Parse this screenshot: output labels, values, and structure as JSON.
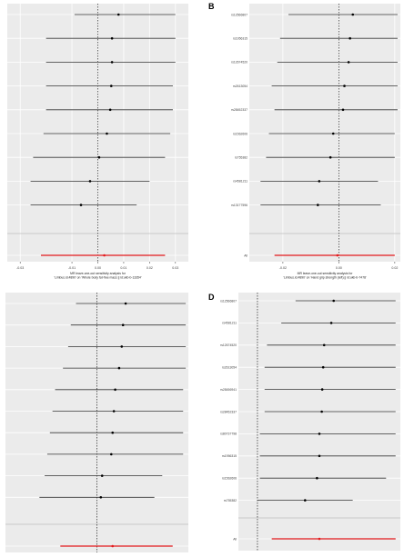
{
  "chart_data": [
    {
      "type": "scatter",
      "panel_label": "",
      "xlabel": [
        "MR leave-one-out sensitivity analysis for",
        "'Limbus.id.4890' on 'Whole body fat-free mass || id:ukb-b-13354'"
      ],
      "xticks": [
        "-0.03",
        "-0.01",
        "0.00",
        "0.01",
        "0.02",
        "0.03"
      ],
      "xlim": [
        -0.035,
        0.035
      ],
      "snps": [
        "",
        "",
        "",
        "",
        "",
        "",
        "",
        "",
        ""
      ],
      "points": [
        {
          "est": 0.008,
          "lo": -0.009,
          "hi": 0.03
        },
        {
          "est": 0.0055,
          "lo": -0.02,
          "hi": 0.03
        },
        {
          "est": 0.0055,
          "lo": -0.02,
          "hi": 0.03
        },
        {
          "est": 0.0052,
          "lo": -0.02,
          "hi": 0.029
        },
        {
          "est": 0.0048,
          "lo": -0.02,
          "hi": 0.029
        },
        {
          "est": 0.0035,
          "lo": -0.021,
          "hi": 0.028
        },
        {
          "est": 0.0005,
          "lo": -0.025,
          "hi": 0.026
        },
        {
          "est": -0.003,
          "lo": -0.026,
          "hi": 0.02
        },
        {
          "est": -0.0065,
          "lo": -0.026,
          "hi": 0.015
        }
      ],
      "summary": {
        "label": "",
        "est": 0.0025,
        "lo": -0.022,
        "hi": 0.026
      }
    },
    {
      "type": "scatter",
      "panel_label": "B",
      "xlabel": [
        "MR leave-one-out sensitivity analysis for",
        "'Limbus.id.4890' on 'Hand grip strength (left) || id:ukb-b-7478'"
      ],
      "xticks": [
        "-0.02",
        "0.00",
        "0.02"
      ],
      "xlim": [
        -0.032,
        0.022
      ],
      "snps": [
        "rs12566807",
        "rs1956315",
        "rs12674520",
        "rs2613054",
        "rs28452337",
        "rs1562606",
        "rs755382",
        "rs4581211",
        "rs13177596"
      ],
      "points": [
        {
          "est": 0.005,
          "lo": -0.018,
          "hi": 0.021
        },
        {
          "est": 0.004,
          "lo": -0.021,
          "hi": 0.021
        },
        {
          "est": 0.0035,
          "lo": -0.022,
          "hi": 0.021
        },
        {
          "est": 0.002,
          "lo": -0.024,
          "hi": 0.021
        },
        {
          "est": 0.0015,
          "lo": -0.023,
          "hi": 0.021
        },
        {
          "est": -0.002,
          "lo": -0.025,
          "hi": 0.02
        },
        {
          "est": -0.003,
          "lo": -0.026,
          "hi": 0.02
        },
        {
          "est": -0.007,
          "lo": -0.028,
          "hi": 0.014
        },
        {
          "est": -0.0075,
          "lo": -0.028,
          "hi": 0.015
        }
      ],
      "summary": {
        "label": "All",
        "est": -0.0005,
        "lo": -0.023,
        "hi": 0.02
      }
    },
    {
      "type": "scatter",
      "panel_label": "",
      "xlabel": [],
      "xticks": [],
      "xlim": [
        -0.035,
        0.035
      ],
      "snps": [
        "",
        "",
        "",
        "",
        "",
        "",
        "",
        "",
        "",
        ""
      ],
      "points": [
        {
          "est": 0.011,
          "lo": -0.008,
          "hi": 0.034
        },
        {
          "est": 0.01,
          "lo": -0.01,
          "hi": 0.034
        },
        {
          "est": 0.0095,
          "lo": -0.011,
          "hi": 0.034
        },
        {
          "est": 0.0085,
          "lo": -0.013,
          "hi": 0.034
        },
        {
          "est": 0.007,
          "lo": -0.016,
          "hi": 0.033
        },
        {
          "est": 0.0065,
          "lo": -0.017,
          "hi": 0.033
        },
        {
          "est": 0.006,
          "lo": -0.018,
          "hi": 0.033
        },
        {
          "est": 0.0055,
          "lo": -0.019,
          "hi": 0.033
        },
        {
          "est": 0.002,
          "lo": -0.02,
          "hi": 0.025
        },
        {
          "est": 0.0015,
          "lo": -0.022,
          "hi": 0.022
        }
      ],
      "summary": {
        "label": "",
        "est": 0.006,
        "lo": -0.014,
        "hi": 0.029
      }
    },
    {
      "type": "scatter",
      "panel_label": "D",
      "xlabel": [],
      "xticks": [],
      "xlim": [
        -0.004,
        0.03
      ],
      "snps": [
        "rs12566807",
        "rs4581211",
        "rs12674520",
        "rs2613054",
        "rs28456941",
        "rs28452337",
        "rs80737798",
        "rs1956315",
        "rs1562606",
        "rs755382"
      ],
      "points": [
        {
          "est": 0.016,
          "lo": 0.008,
          "hi": 0.029
        },
        {
          "est": 0.0155,
          "lo": 0.005,
          "hi": 0.029
        },
        {
          "est": 0.014,
          "lo": 0.002,
          "hi": 0.029
        },
        {
          "est": 0.0138,
          "lo": 0.0015,
          "hi": 0.029
        },
        {
          "est": 0.0136,
          "lo": 0.0015,
          "hi": 0.029
        },
        {
          "est": 0.0135,
          "lo": 0.0015,
          "hi": 0.029
        },
        {
          "est": 0.013,
          "lo": 0.0005,
          "hi": 0.029
        },
        {
          "est": 0.013,
          "lo": 0.0005,
          "hi": 0.029
        },
        {
          "est": 0.0125,
          "lo": 0.0005,
          "hi": 0.027
        },
        {
          "est": 0.01,
          "lo": 0.0,
          "hi": 0.02
        }
      ],
      "summary": {
        "label": "All",
        "est": 0.013,
        "lo": 0.003,
        "hi": 0.029
      }
    }
  ]
}
